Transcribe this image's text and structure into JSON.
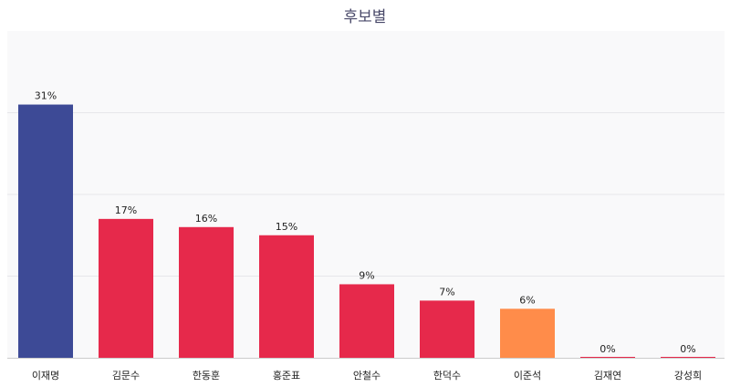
{
  "chart_data": {
    "type": "bar",
    "title": "후보별",
    "categories": [
      "이재명",
      "김문수",
      "한동훈",
      "홍준표",
      "안철수",
      "한덕수",
      "이준석",
      "김재연",
      "강성희"
    ],
    "values": [
      31,
      17,
      16,
      15,
      9,
      7,
      6,
      0,
      0
    ],
    "value_labels": [
      "31%",
      "17%",
      "16%",
      "15%",
      "9%",
      "7%",
      "6%",
      "0%",
      "0%"
    ],
    "colors": [
      "#3d4a96",
      "#e6294b",
      "#e6294b",
      "#e6294b",
      "#e6294b",
      "#e6294b",
      "#ff8c4a",
      "#e6294b",
      "#e6294b"
    ],
    "ylim": [
      0,
      40
    ],
    "grid": true,
    "xlabel": "",
    "ylabel": ""
  }
}
